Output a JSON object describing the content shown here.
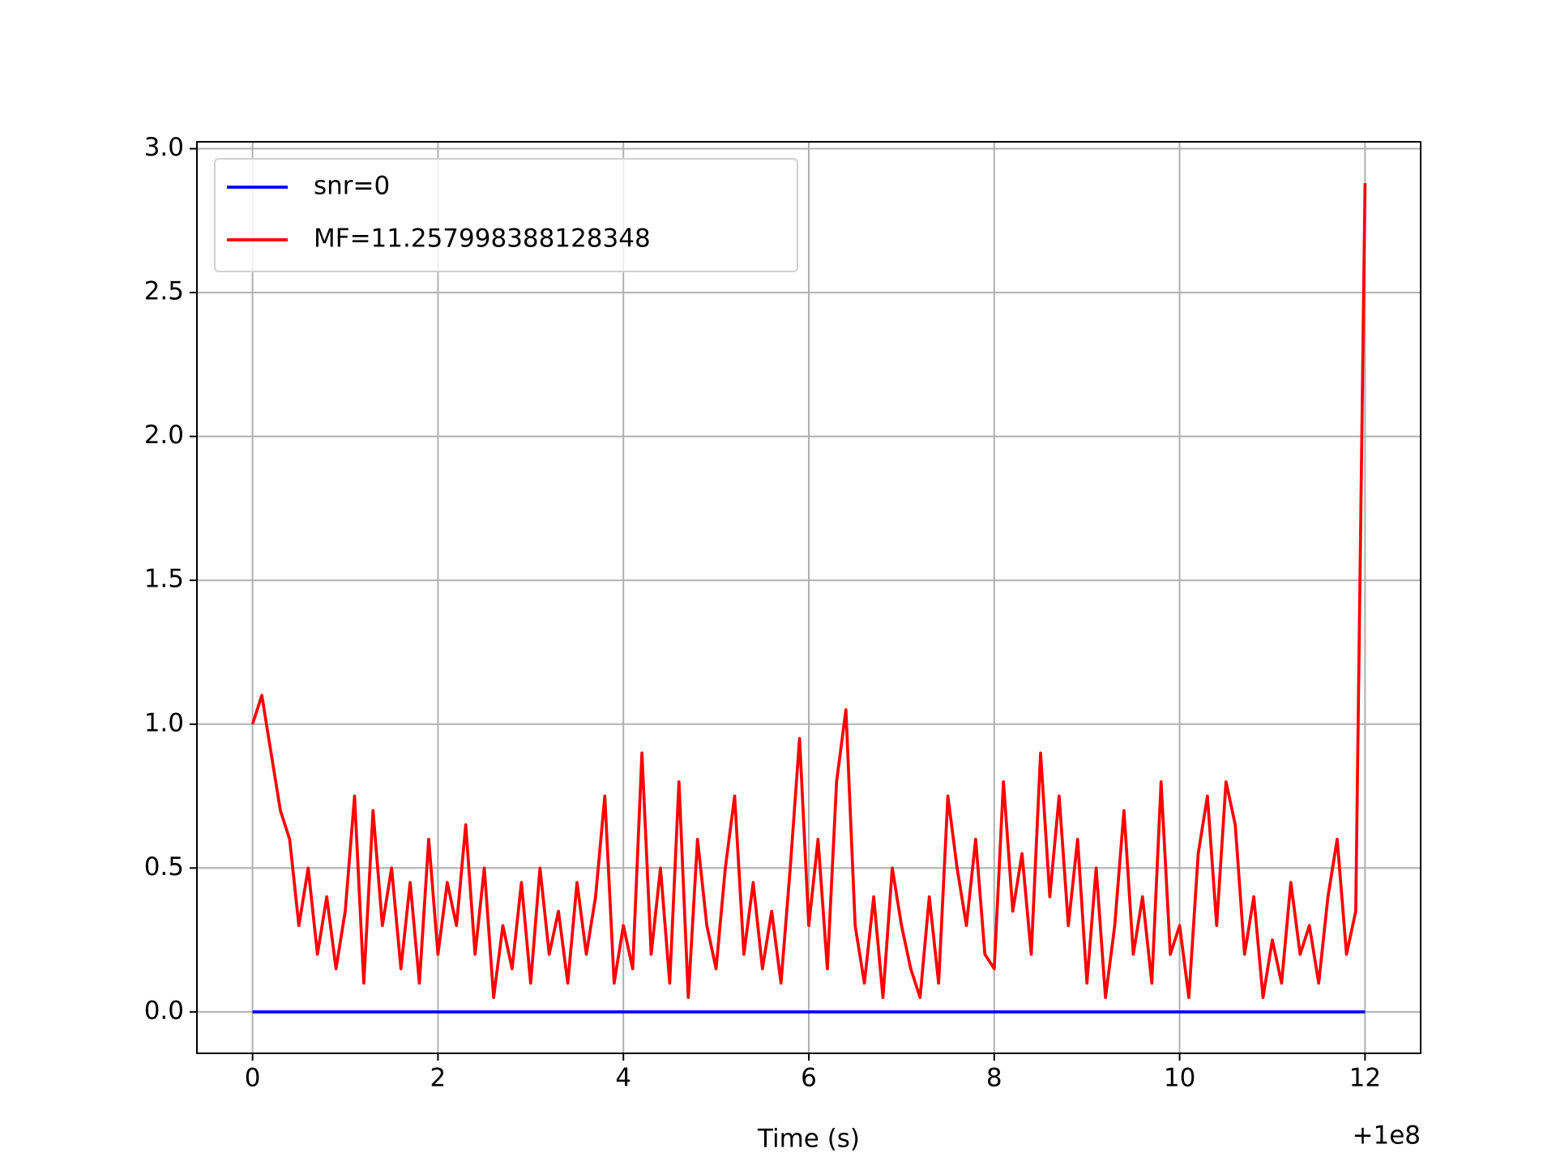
{
  "chart_data": {
    "type": "line",
    "xlabel": "Time (s)",
    "x_offset_label": "+1e8",
    "xlim": [
      -0.6,
      12.6
    ],
    "ylim": [
      -0.144,
      3.024
    ],
    "xticks": [
      0,
      2,
      4,
      6,
      8,
      10,
      12
    ],
    "yticks": [
      {
        "value": 0,
        "label": "0.0"
      },
      0.5,
      {
        "value": 1,
        "label": "1.0"
      },
      1.5,
      {
        "value": 2,
        "label": "2.0"
      },
      2.5,
      {
        "value": 3,
        "label": "3.0"
      }
    ],
    "grid": true,
    "legend": "upper left",
    "series": [
      {
        "name": "snr=0",
        "color": "#0000ff",
        "x": [
          0,
          12
        ],
        "values": [
          0,
          0
        ]
      },
      {
        "name": "MF=11.257998388128348",
        "color": "#ff0000",
        "x": [
          0,
          0.1,
          0.2,
          0.3,
          0.4,
          0.5,
          0.6,
          0.7,
          0.8,
          0.9,
          1,
          1.1,
          1.2,
          1.3,
          1.4,
          1.5,
          1.6,
          1.7,
          1.8,
          1.9,
          2,
          2.1,
          2.2,
          2.3,
          2.4,
          2.5,
          2.6,
          2.7,
          2.8,
          2.9,
          3,
          3.1,
          3.2,
          3.3,
          3.4,
          3.5,
          3.6,
          3.7,
          3.8,
          3.9,
          4,
          4.1,
          4.2,
          4.3,
          4.4,
          4.5,
          4.6,
          4.7,
          4.8,
          4.9,
          5,
          5.1,
          5.2,
          5.3,
          5.4,
          5.5,
          5.6,
          5.7,
          5.8,
          5.9,
          6,
          6.1,
          6.2,
          6.3,
          6.4,
          6.5,
          6.6,
          6.7,
          6.8,
          6.9,
          7,
          7.1,
          7.2,
          7.3,
          7.4,
          7.5,
          7.6,
          7.7,
          7.8,
          7.9,
          8,
          8.1,
          8.2,
          8.3,
          8.4,
          8.5,
          8.6,
          8.7,
          8.8,
          8.9,
          9,
          9.1,
          9.2,
          9.3,
          9.4,
          9.5,
          9.6,
          9.7,
          9.8,
          9.9,
          10,
          10.1,
          10.2,
          10.3,
          10.4,
          10.5,
          10.6,
          10.7,
          10.8,
          10.9,
          11,
          11.1,
          11.2,
          11.3,
          11.4,
          11.5,
          11.6,
          11.7,
          11.8,
          11.9,
          12
        ],
        "values": [
          1.0,
          1.1,
          0.9,
          0.7,
          0.6,
          0.3,
          0.5,
          0.2,
          0.4,
          0.15,
          0.35,
          0.75,
          0.1,
          0.7,
          0.3,
          0.5,
          0.15,
          0.45,
          0.1,
          0.6,
          0.2,
          0.45,
          0.3,
          0.65,
          0.2,
          0.5,
          0.05,
          0.3,
          0.15,
          0.45,
          0.1,
          0.5,
          0.2,
          0.35,
          0.1,
          0.45,
          0.2,
          0.4,
          0.75,
          0.1,
          0.3,
          0.15,
          0.9,
          0.2,
          0.5,
          0.1,
          0.8,
          0.05,
          0.6,
          0.3,
          0.15,
          0.5,
          0.75,
          0.2,
          0.45,
          0.15,
          0.35,
          0.1,
          0.5,
          0.95,
          0.3,
          0.6,
          0.15,
          0.8,
          1.05,
          0.3,
          0.1,
          0.4,
          0.05,
          0.5,
          0.3,
          0.15,
          0.05,
          0.4,
          0.1,
          0.75,
          0.5,
          0.3,
          0.6,
          0.2,
          0.15,
          0.8,
          0.35,
          0.55,
          0.2,
          0.9,
          0.4,
          0.75,
          0.3,
          0.6,
          0.1,
          0.5,
          0.05,
          0.3,
          0.7,
          0.2,
          0.4,
          0.1,
          0.8,
          0.2,
          0.3,
          0.05,
          0.55,
          0.75,
          0.3,
          0.8,
          0.65,
          0.2,
          0.4,
          0.05,
          0.25,
          0.1,
          0.45,
          0.2,
          0.3,
          0.1,
          0.4,
          0.6,
          0.2,
          0.35,
          2.88
        ]
      }
    ]
  }
}
